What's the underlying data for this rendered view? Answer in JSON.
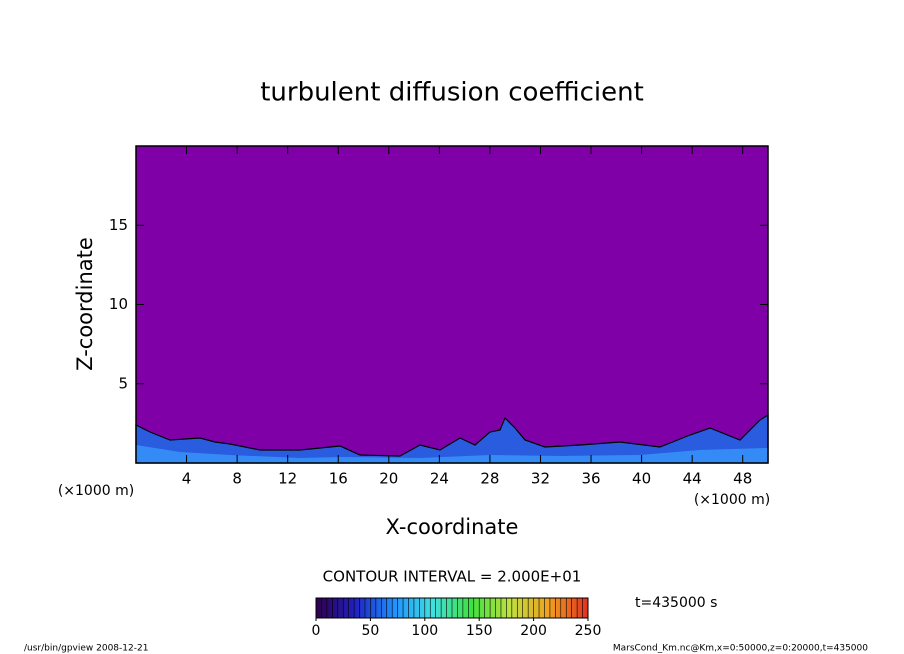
{
  "chart_data": {
    "type": "contour",
    "title": "turbulent diffusion coefficient",
    "xlabel": "X-coordinate",
    "ylabel": "Z-coordinate",
    "x_unit": "(×1000 m)",
    "y_unit": "(×1000 m)",
    "xlim": [
      0,
      50
    ],
    "ylim": [
      0,
      20
    ],
    "xticks": [
      4,
      8,
      12,
      16,
      20,
      24,
      28,
      32,
      36,
      40,
      44,
      48
    ],
    "yticks": [
      5,
      10,
      15
    ],
    "field_color": "#8000a8",
    "contour_interval": "CONTOUR INTERVAL = 2.000E+01",
    "time_label": "t=435000 s",
    "colorbar": {
      "lim": [
        0,
        250
      ],
      "ticks": [
        0,
        50,
        100,
        150,
        200,
        250
      ],
      "colors": [
        "#30004a",
        "#2020c0",
        "#2090ff",
        "#40e0e0",
        "#40e040",
        "#c0e040",
        "#f0a020",
        "#e03020"
      ]
    },
    "footer_left": "/usr/bin/gpview   2008-12-21",
    "footer_right": "MarsCond_Km.nc@Km,x=0:50000,z=0:20000,t=435000"
  }
}
